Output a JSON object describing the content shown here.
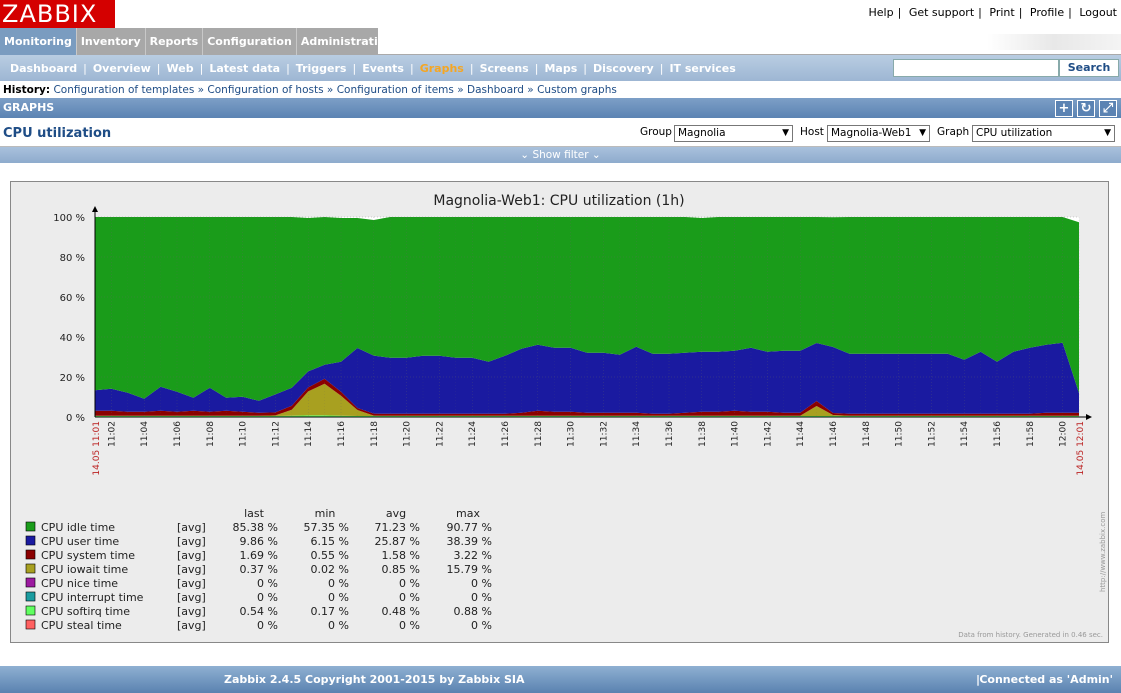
{
  "logo": "ZABBIX",
  "top_links": [
    "Help",
    "Get support",
    "Print",
    "Profile",
    "Logout"
  ],
  "main_menu": [
    "Monitoring",
    "Inventory",
    "Reports",
    "Configuration",
    "Administration"
  ],
  "sub_menu": [
    "Dashboard",
    "Overview",
    "Web",
    "Latest data",
    "Triggers",
    "Events",
    "Graphs",
    "Screens",
    "Maps",
    "Discovery",
    "IT services"
  ],
  "search_button": "Search",
  "history": {
    "label": "History:",
    "items": [
      "Configuration of templates",
      "Configuration of hosts",
      "Configuration of items",
      "Dashboard",
      "Custom graphs"
    ]
  },
  "section_title": "GRAPHS",
  "page_title": "CPU utilization",
  "filters": {
    "group_label": "Group",
    "group_value": "Magnolia",
    "host_label": "Host",
    "host_value": "Magnolia-Web1",
    "graph_label": "Graph",
    "graph_value": "CPU utilization"
  },
  "show_filter": "Show filter",
  "footer": {
    "copyright": "Zabbix 2.4.5 Copyright 2001-2015 by Zabbix SIA",
    "connected": "Connected as 'Admin'"
  },
  "colors": {
    "idle": "#1a9c1a",
    "user": "#1a1aa0",
    "system": "#8b0000",
    "iowait": "#a8a020",
    "nice": "#9c1aa0",
    "interrupt": "#1a9ca0",
    "softirq": "#60ff60",
    "steal": "#ff6060"
  },
  "chart_data": {
    "type": "area",
    "title": "Magnolia-Web1: CPU utilization (1h)",
    "y_ticks": [
      "100 %",
      "80 %",
      "60 %",
      "40 %",
      "20 %",
      "0 %"
    ],
    "ylim": [
      0,
      100
    ],
    "x_ticks": [
      "11:02",
      "11:04",
      "11:06",
      "11:08",
      "11:10",
      "11:12",
      "11:14",
      "11:16",
      "11:18",
      "11:20",
      "11:22",
      "11:24",
      "11:26",
      "11:28",
      "11:30",
      "11:32",
      "11:34",
      "11:36",
      "11:38",
      "11:40",
      "11:42",
      "11:44",
      "11:46",
      "11:48",
      "11:50",
      "11:52",
      "11:54",
      "11:56",
      "11:58",
      "12:00"
    ],
    "x_start_label": "14.05 11:01",
    "x_end_label": "14.05 12:01",
    "x_minutes": [
      0,
      1,
      2,
      3,
      4,
      5,
      6,
      7,
      8,
      9,
      10,
      11,
      12,
      13,
      14,
      15,
      16,
      17,
      18,
      19,
      20,
      21,
      22,
      23,
      24,
      25,
      26,
      27,
      28,
      29,
      30,
      31,
      32,
      33,
      34,
      35,
      36,
      37,
      38,
      39,
      40,
      41,
      42,
      43,
      44,
      45,
      46,
      47,
      48,
      49,
      50,
      51,
      52,
      53,
      54,
      55,
      56,
      57,
      58,
      59,
      60
    ],
    "series": [
      {
        "name": "CPU steal time",
        "values": [
          0,
          0,
          0,
          0,
          0,
          0,
          0,
          0,
          0,
          0,
          0,
          0,
          0,
          0,
          0,
          0,
          0,
          0,
          0,
          0,
          0,
          0,
          0,
          0,
          0,
          0,
          0,
          0,
          0,
          0,
          0,
          0,
          0,
          0,
          0,
          0,
          0,
          0,
          0,
          0,
          0,
          0,
          0,
          0,
          0,
          0,
          0,
          0,
          0,
          0,
          0,
          0,
          0,
          0,
          0,
          0,
          0,
          0,
          0,
          0,
          0
        ]
      },
      {
        "name": "CPU softirq time",
        "values": [
          0.5,
          0.5,
          0.5,
          0.5,
          0.5,
          0.5,
          0.5,
          0.5,
          0.5,
          0.5,
          0.5,
          0.5,
          0.6,
          0.8,
          0.8,
          0.6,
          0.5,
          0.5,
          0.5,
          0.5,
          0.5,
          0.5,
          0.5,
          0.5,
          0.5,
          0.5,
          0.5,
          0.5,
          0.5,
          0.5,
          0.5,
          0.5,
          0.5,
          0.5,
          0.5,
          0.5,
          0.5,
          0.5,
          0.5,
          0.5,
          0.5,
          0.5,
          0.5,
          0.5,
          0.5,
          0.5,
          0.5,
          0.5,
          0.5,
          0.5,
          0.5,
          0.5,
          0.5,
          0.5,
          0.5,
          0.5,
          0.5,
          0.5,
          0.5,
          0.5,
          0.5
        ]
      },
      {
        "name": "CPU interrupt time",
        "values": [
          0,
          0,
          0,
          0,
          0,
          0,
          0,
          0,
          0,
          0,
          0,
          0,
          0,
          0,
          0,
          0,
          0,
          0,
          0,
          0,
          0,
          0,
          0,
          0,
          0,
          0,
          0,
          0,
          0,
          0,
          0,
          0,
          0,
          0,
          0,
          0,
          0,
          0,
          0,
          0,
          0,
          0,
          0,
          0,
          0,
          0,
          0,
          0,
          0,
          0,
          0,
          0,
          0,
          0,
          0,
          0,
          0,
          0,
          0,
          0,
          0
        ]
      },
      {
        "name": "CPU nice time",
        "values": [
          0,
          0,
          0,
          0,
          0,
          0,
          0,
          0,
          0,
          0,
          0,
          0,
          0,
          0,
          0,
          0,
          0,
          0,
          0,
          0,
          0,
          0,
          0,
          0,
          0,
          0,
          0,
          0,
          0,
          0,
          0,
          0,
          0,
          0,
          0,
          0,
          0,
          0,
          0,
          0,
          0,
          0,
          0,
          0,
          0,
          0,
          0,
          0,
          0,
          0,
          0,
          0,
          0,
          0,
          0,
          0,
          0,
          0,
          0,
          0,
          0
        ]
      },
      {
        "name": "CPU iowait time",
        "values": [
          0.1,
          0.1,
          0.1,
          0.1,
          0.1,
          0.1,
          0.1,
          0.1,
          0.1,
          0.1,
          0.1,
          0.3,
          3,
          12,
          15.8,
          10,
          3,
          0.2,
          0.1,
          0.1,
          0.1,
          0.1,
          0.1,
          0.1,
          0.1,
          0.1,
          0.1,
          0.1,
          0.1,
          0.1,
          0.1,
          0.1,
          0.1,
          0.1,
          0.1,
          0.1,
          0.1,
          0.1,
          0.1,
          0.1,
          0.1,
          0.1,
          0.1,
          0.1,
          5,
          0.5,
          0.1,
          0.1,
          0.1,
          0.1,
          0.1,
          0.1,
          0.1,
          0.1,
          0.1,
          0.1,
          0.1,
          0.1,
          0.1,
          0.1,
          0.1
        ]
      },
      {
        "name": "CPU system time",
        "values": [
          2.5,
          2.5,
          2,
          2,
          2.5,
          2,
          2.5,
          2,
          2.5,
          2,
          1.5,
          1.5,
          2,
          2,
          2.5,
          2,
          1,
          1,
          1,
          1,
          1,
          1,
          1,
          1,
          1,
          1,
          1.5,
          2.5,
          2,
          2,
          1.5,
          1.5,
          1.5,
          1.5,
          1,
          1,
          1.5,
          2,
          2,
          2.5,
          2,
          2,
          1.5,
          1.5,
          2.5,
          1,
          1,
          1,
          1,
          1,
          1,
          1,
          1,
          1,
          1,
          1,
          1,
          1,
          1.5,
          1.5,
          1.5
        ]
      },
      {
        "name": "CPU user time",
        "values": [
          10.3,
          11,
          9.5,
          6.5,
          12,
          10,
          6.5,
          12,
          6.5,
          7.5,
          6,
          9,
          9,
          8,
          7,
          15,
          30,
          29,
          28,
          28,
          29,
          29,
          28,
          28,
          26,
          29,
          32,
          33,
          32,
          32,
          30,
          30,
          29,
          33,
          30,
          30,
          30,
          30,
          30,
          30,
          32,
          30,
          31,
          31,
          29,
          33,
          30,
          30,
          30,
          30,
          30,
          30,
          30,
          27,
          31,
          26,
          31,
          33,
          34,
          35,
          9.9
        ]
      },
      {
        "name": "CPU idle time",
        "values": [
          86.6,
          85.9,
          87.9,
          90.9,
          84.9,
          87.4,
          90.4,
          85.4,
          90.4,
          89.9,
          91.9,
          88.7,
          85.4,
          76.7,
          74.3,
          71.9,
          65.0,
          67.8,
          70.4,
          70.4,
          69.4,
          69.4,
          70.4,
          70.4,
          72.4,
          69.4,
          65.9,
          63.9,
          65.4,
          65.4,
          67.9,
          67.9,
          68.9,
          64.9,
          68.4,
          68.4,
          67.9,
          66.9,
          67.4,
          66.9,
          65.4,
          67.4,
          66.9,
          66.9,
          63.0,
          64.9,
          68.4,
          68.4,
          68.4,
          68.4,
          68.4,
          68.4,
          68.4,
          71.4,
          67.4,
          72.4,
          67.4,
          65.4,
          63.9,
          62.9,
          85.4
        ]
      }
    ],
    "legend": {
      "headers": [
        "last",
        "min",
        "avg",
        "max"
      ],
      "rows": [
        {
          "name": "CPU idle time",
          "fn": "[avg]",
          "last": "85.38 %",
          "min": "57.35 %",
          "avg": "71.23 %",
          "max": "90.77 %"
        },
        {
          "name": "CPU user time",
          "fn": "[avg]",
          "last": "9.86 %",
          "min": "6.15 %",
          "avg": "25.87 %",
          "max": "38.39 %"
        },
        {
          "name": "CPU system time",
          "fn": "[avg]",
          "last": "1.69 %",
          "min": "0.55 %",
          "avg": "1.58 %",
          "max": "3.22 %"
        },
        {
          "name": "CPU iowait time",
          "fn": "[avg]",
          "last": "0.37 %",
          "min": "0.02 %",
          "avg": "0.85 %",
          "max": "15.79 %"
        },
        {
          "name": "CPU nice time",
          "fn": "[avg]",
          "last": "0 %",
          "min": "0 %",
          "avg": "0 %",
          "max": "0 %"
        },
        {
          "name": "CPU interrupt time",
          "fn": "[avg]",
          "last": "0 %",
          "min": "0 %",
          "avg": "0 %",
          "max": "0 %"
        },
        {
          "name": "CPU softirq time",
          "fn": "[avg]",
          "last": "0.54 %",
          "min": "0.17 %",
          "avg": "0.48 %",
          "max": "0.88 %"
        },
        {
          "name": "CPU steal time",
          "fn": "[avg]",
          "last": "0 %",
          "min": "0 %",
          "avg": "0 %",
          "max": "0 %"
        }
      ]
    },
    "side_text": "http://www.zabbix.com",
    "footnote": "Data from history. Generated in 0.46 sec."
  }
}
